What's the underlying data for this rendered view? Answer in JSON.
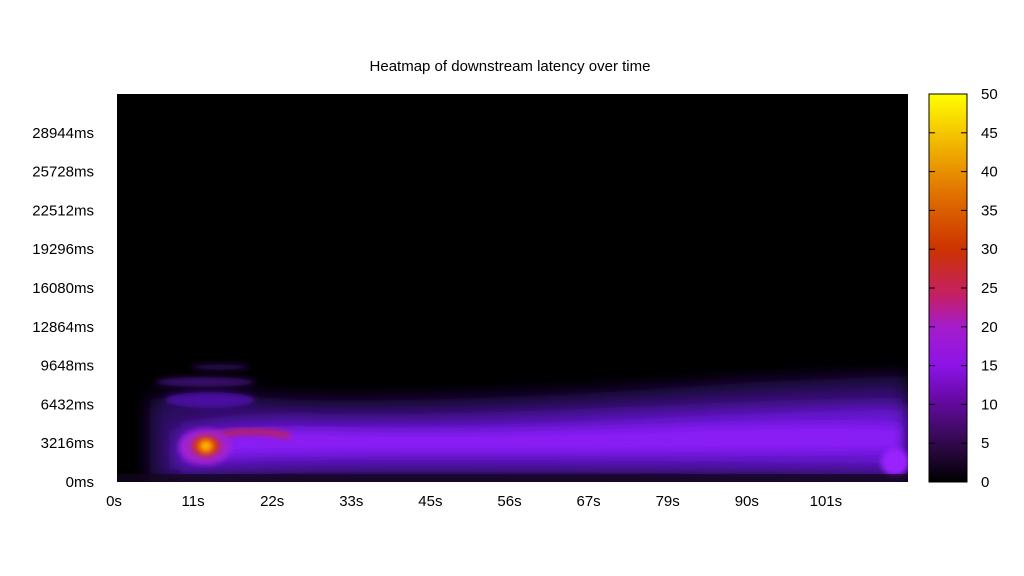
{
  "chart_data": {
    "type": "heatmap",
    "title": "Heatmap of downstream latency over time",
    "xlabel": "",
    "ylabel": "",
    "x_unit": "s",
    "y_unit": "ms",
    "xlim": [
      0,
      112
    ],
    "ylim": [
      0,
      32160
    ],
    "x_ticks": [
      "0s",
      "11s",
      "22s",
      "33s",
      "45s",
      "56s",
      "67s",
      "79s",
      "90s",
      "101s"
    ],
    "x_tick_values": [
      0,
      11.2,
      22.4,
      33.6,
      44.8,
      56,
      67.2,
      78.4,
      89.6,
      100.8
    ],
    "y_ticks": [
      "0ms",
      "3216ms",
      "6432ms",
      "9648ms",
      "12864ms",
      "16080ms",
      "19296ms",
      "22512ms",
      "25728ms",
      "28944ms"
    ],
    "y_tick_values": [
      0,
      3216,
      6432,
      9648,
      12864,
      16080,
      19296,
      22512,
      25728,
      28944
    ],
    "colorbar": {
      "min": 0,
      "max": 50,
      "ticks": [
        "0",
        "5",
        "10",
        "15",
        "20",
        "25",
        "30",
        "35",
        "40",
        "45",
        "50"
      ],
      "tick_values": [
        0,
        5,
        10,
        15,
        20,
        25,
        30,
        35,
        40,
        45,
        50
      ],
      "palette": "black-purple-orange-yellow"
    },
    "background_color": "#000000",
    "hotspots": [
      {
        "x": 12.5,
        "y": 2900,
        "value": 45
      },
      {
        "x": 14,
        "y": 3500,
        "value": 30
      },
      {
        "x": 22,
        "y": 3900,
        "value": 18
      },
      {
        "x": 35,
        "y": 4300,
        "value": 14
      },
      {
        "x": 56,
        "y": 4100,
        "value": 13
      },
      {
        "x": 79,
        "y": 4000,
        "value": 13
      },
      {
        "x": 101,
        "y": 4000,
        "value": 12
      },
      {
        "x": 111,
        "y": 1500,
        "value": 15
      }
    ]
  }
}
